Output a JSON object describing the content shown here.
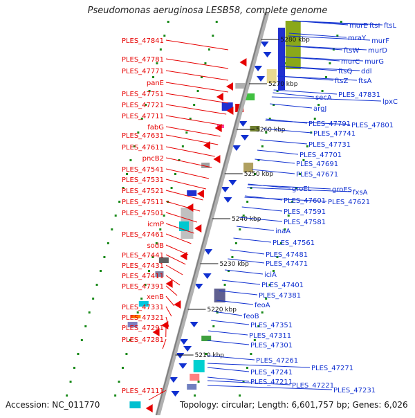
{
  "title": "Pseudomonas aeruginosa LESB58, complete genome",
  "accession": "Accession: NC_011770",
  "topology": "Topology: circular; Length: 6,601,757 bp; Genes: 6,026",
  "colors": {
    "plus_strand": "#e60000",
    "minus_strand": "#1030d0",
    "backbone": "#808080",
    "dots": "#1a8a1a"
  },
  "kbp_markers": [
    "5280 kbp",
    "5270 kbp",
    "5260 kbp",
    "5250 kbp",
    "5240 kbp",
    "5230 kbp",
    "5220 kbp",
    "5210 kbp"
  ],
  "left_labels": [
    "PLES_47841",
    "PLES_47781",
    "PLES_47771",
    "panE",
    "PLES_47751",
    "PLES_47721",
    "PLES_47711",
    "fabG",
    "PLES_47631",
    "PLES_47611",
    "pncB2",
    "PLES_47541",
    "PLES_47531",
    "PLES_47521",
    "PLES_47511",
    "PLES_47501",
    "icmP",
    "PLES_47461",
    "sodB",
    "PLES_47441",
    "PLES_47431",
    "PLES_47411",
    "PLES_47391",
    "xenB",
    "PLES_47331",
    "PLES_47321",
    "PLES_47291",
    "PLES_47281",
    "PLES_47111"
  ],
  "right_labels": [
    "murE",
    "ftsI",
    "ftsL",
    "mraY",
    "murF",
    "ftsW",
    "murD",
    "murC",
    "murG",
    "ftsQ",
    "ddl",
    "ftsZ",
    "ftsA",
    "PLES_47831",
    "lpxC",
    "secA",
    "argJ",
    "PLES_47791",
    "PLES_47801",
    "PLES_47741",
    "PLES_47731",
    "PLES_47701",
    "PLES_47691",
    "PLES_47671",
    "groEL",
    "groES",
    "fxsA",
    "PLES_47601",
    "PLES_47621",
    "PLES_47591",
    "PLES_47581",
    "inaA",
    "PLES_47561",
    "PLES_47481",
    "PLES_47471",
    "iciA",
    "PLES_47401",
    "PLES_47381",
    "feoA",
    "feoB",
    "PLES_47351",
    "PLES_47311",
    "PLES_47301",
    "PLES_47261",
    "PLES_47271",
    "PLES_47241",
    "PLES_47211",
    "PLES_47221",
    "PLES_47231"
  ]
}
